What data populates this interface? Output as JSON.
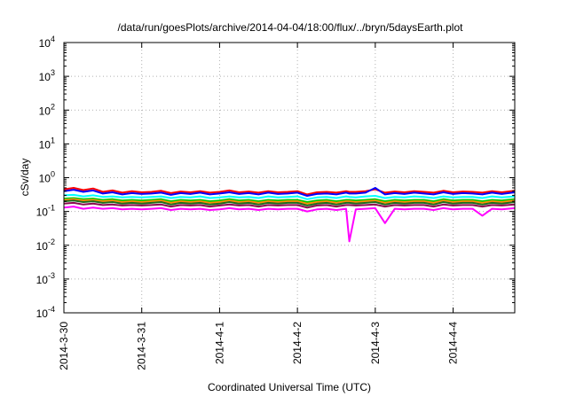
{
  "chart_data": {
    "type": "line",
    "title": "/data/run/goesPlots/archive/2014-04-04/18:00/flux/../bryn/5daysEarth.plot",
    "xlabel": "Coordinated Universal Time (UTC)",
    "ylabel": "cSv/day",
    "yscale": "log",
    "ylim": [
      0.0001,
      10000
    ],
    "xlim": [
      "2014-03-30",
      "2014-04-04 19:00"
    ],
    "grid": true,
    "legend": "none",
    "x_ticks": [
      {
        "label": "2014-3-30",
        "x": "2014-03-30"
      },
      {
        "label": "2014-3-31",
        "x": "2014-03-31"
      },
      {
        "label": "2014-4-1",
        "x": "2014-04-01"
      },
      {
        "label": "2014-4-2",
        "x": "2014-04-02"
      },
      {
        "label": "2014-4-3",
        "x": "2014-04-03"
      },
      {
        "label": "2014-4-4",
        "x": "2014-04-04"
      }
    ],
    "y_ticks": [
      {
        "base": "10",
        "exp": "-4",
        "value": 0.0001
      },
      {
        "base": "10",
        "exp": "-3",
        "value": 0.001
      },
      {
        "base": "10",
        "exp": "-2",
        "value": 0.01
      },
      {
        "base": "10",
        "exp": "-1",
        "value": 0.1
      },
      {
        "base": "10",
        "exp": "0",
        "value": 1
      },
      {
        "base": "10",
        "exp": "1",
        "value": 10
      },
      {
        "base": "10",
        "exp": "2",
        "value": 100
      },
      {
        "base": "10",
        "exp": "3",
        "value": 1000
      },
      {
        "base": "10",
        "exp": "4",
        "value": 10000
      }
    ],
    "x": [
      "2014-03-30 00:00",
      "2014-03-30 03:00",
      "2014-03-30 06:00",
      "2014-03-30 09:00",
      "2014-03-30 12:00",
      "2014-03-30 15:00",
      "2014-03-30 18:00",
      "2014-03-30 21:00",
      "2014-03-31 00:00",
      "2014-03-31 03:00",
      "2014-03-31 06:00",
      "2014-03-31 09:00",
      "2014-03-31 12:00",
      "2014-03-31 15:00",
      "2014-03-31 18:00",
      "2014-03-31 21:00",
      "2014-04-01 00:00",
      "2014-04-01 03:00",
      "2014-04-01 06:00",
      "2014-04-01 09:00",
      "2014-04-01 12:00",
      "2014-04-01 15:00",
      "2014-04-01 18:00",
      "2014-04-01 21:00",
      "2014-04-02 00:00",
      "2014-04-02 03:00",
      "2014-04-02 06:00",
      "2014-04-02 09:00",
      "2014-04-02 12:00",
      "2014-04-02 15:00",
      "2014-04-02 16:00",
      "2014-04-02 18:00",
      "2014-04-02 21:00",
      "2014-04-03 00:00",
      "2014-04-03 03:00",
      "2014-04-03 06:00",
      "2014-04-03 09:00",
      "2014-04-03 12:00",
      "2014-04-03 15:00",
      "2014-04-03 18:00",
      "2014-04-03 21:00",
      "2014-04-04 00:00",
      "2014-04-04 03:00",
      "2014-04-04 06:00",
      "2014-04-04 09:00",
      "2014-04-04 12:00",
      "2014-04-04 15:00",
      "2014-04-04 19:00"
    ],
    "series": [
      {
        "color": "#ff0000",
        "values": [
          0.45,
          0.5,
          0.43,
          0.48,
          0.38,
          0.42,
          0.36,
          0.4,
          0.37,
          0.38,
          0.41,
          0.35,
          0.39,
          0.37,
          0.4,
          0.36,
          0.38,
          0.42,
          0.37,
          0.39,
          0.36,
          0.4,
          0.37,
          0.38,
          0.4,
          0.32,
          0.37,
          0.38,
          0.36,
          0.4,
          0.38,
          0.38,
          0.4,
          0.45,
          0.36,
          0.39,
          0.37,
          0.4,
          0.38,
          0.36,
          0.41,
          0.37,
          0.39,
          0.38,
          0.36,
          0.4,
          0.37,
          0.41
        ]
      },
      {
        "color": "#0000ff",
        "values": [
          0.4,
          0.44,
          0.38,
          0.42,
          0.34,
          0.37,
          0.32,
          0.35,
          0.33,
          0.34,
          0.36,
          0.31,
          0.35,
          0.33,
          0.36,
          0.32,
          0.34,
          0.37,
          0.33,
          0.35,
          0.32,
          0.36,
          0.33,
          0.34,
          0.36,
          0.29,
          0.33,
          0.34,
          0.32,
          0.36,
          0.34,
          0.34,
          0.36,
          0.5,
          0.32,
          0.35,
          0.33,
          0.36,
          0.34,
          0.32,
          0.37,
          0.33,
          0.35,
          0.34,
          0.32,
          0.36,
          0.33,
          0.37
        ]
      },
      {
        "color": "#00ffff",
        "values": [
          0.3,
          0.31,
          0.28,
          0.3,
          0.27,
          0.28,
          0.26,
          0.27,
          0.26,
          0.27,
          0.28,
          0.25,
          0.27,
          0.26,
          0.28,
          0.25,
          0.26,
          0.28,
          0.26,
          0.27,
          0.25,
          0.28,
          0.26,
          0.27,
          0.28,
          0.23,
          0.26,
          0.27,
          0.25,
          0.28,
          0.27,
          0.26,
          0.28,
          0.29,
          0.25,
          0.27,
          0.26,
          0.28,
          0.27,
          0.25,
          0.28,
          0.26,
          0.27,
          0.27,
          0.25,
          0.28,
          0.26,
          0.28
        ]
      },
      {
        "color": "#00cc00",
        "values": [
          0.24,
          0.25,
          0.23,
          0.24,
          0.22,
          0.23,
          0.21,
          0.22,
          0.21,
          0.22,
          0.23,
          0.2,
          0.22,
          0.21,
          0.22,
          0.2,
          0.21,
          0.23,
          0.21,
          0.22,
          0.2,
          0.22,
          0.21,
          0.22,
          0.22,
          0.19,
          0.21,
          0.22,
          0.2,
          0.22,
          0.22,
          0.21,
          0.22,
          0.23,
          0.2,
          0.22,
          0.21,
          0.22,
          0.22,
          0.2,
          0.23,
          0.21,
          0.22,
          0.22,
          0.2,
          0.22,
          0.21,
          0.23
        ]
      },
      {
        "color": "#ff8c00",
        "values": [
          0.22,
          0.23,
          0.21,
          0.22,
          0.2,
          0.21,
          0.19,
          0.2,
          0.19,
          0.2,
          0.21,
          0.18,
          0.2,
          0.19,
          0.2,
          0.18,
          0.19,
          0.21,
          0.19,
          0.2,
          0.18,
          0.2,
          0.19,
          0.2,
          0.2,
          0.17,
          0.19,
          0.2,
          0.18,
          0.2,
          0.2,
          0.19,
          0.2,
          0.21,
          0.18,
          0.2,
          0.19,
          0.2,
          0.2,
          0.18,
          0.21,
          0.19,
          0.2,
          0.2,
          0.18,
          0.2,
          0.19,
          0.21
        ]
      },
      {
        "color": "#1e6b1e",
        "values": [
          0.2,
          0.21,
          0.19,
          0.2,
          0.18,
          0.19,
          0.17,
          0.18,
          0.17,
          0.18,
          0.19,
          0.16,
          0.18,
          0.17,
          0.18,
          0.16,
          0.17,
          0.19,
          0.17,
          0.18,
          0.16,
          0.18,
          0.17,
          0.18,
          0.18,
          0.15,
          0.17,
          0.18,
          0.16,
          0.18,
          0.18,
          0.17,
          0.18,
          0.19,
          0.16,
          0.18,
          0.17,
          0.18,
          0.18,
          0.16,
          0.19,
          0.17,
          0.18,
          0.18,
          0.16,
          0.18,
          0.17,
          0.19
        ]
      },
      {
        "color": "#8b0a50",
        "values": [
          0.17,
          0.18,
          0.16,
          0.17,
          0.155,
          0.16,
          0.15,
          0.155,
          0.15,
          0.155,
          0.16,
          0.14,
          0.155,
          0.15,
          0.155,
          0.14,
          0.15,
          0.16,
          0.15,
          0.155,
          0.14,
          0.155,
          0.15,
          0.155,
          0.155,
          0.13,
          0.15,
          0.155,
          0.14,
          0.155,
          0.155,
          0.15,
          0.155,
          0.16,
          0.14,
          0.155,
          0.15,
          0.155,
          0.155,
          0.14,
          0.16,
          0.15,
          0.155,
          0.155,
          0.14,
          0.155,
          0.15,
          0.16
        ]
      },
      {
        "color": "#ff00ff",
        "values": [
          0.13,
          0.14,
          0.12,
          0.13,
          0.12,
          0.125,
          0.115,
          0.12,
          0.115,
          0.12,
          0.125,
          0.11,
          0.12,
          0.115,
          0.12,
          0.11,
          0.115,
          0.125,
          0.115,
          0.12,
          0.11,
          0.12,
          0.115,
          0.12,
          0.12,
          0.1,
          0.115,
          0.12,
          0.11,
          0.12,
          0.013,
          0.115,
          0.12,
          0.125,
          0.045,
          0.12,
          0.115,
          0.12,
          0.12,
          0.11,
          0.125,
          0.115,
          0.12,
          0.12,
          0.075,
          0.12,
          0.115,
          0.125
        ]
      }
    ]
  }
}
